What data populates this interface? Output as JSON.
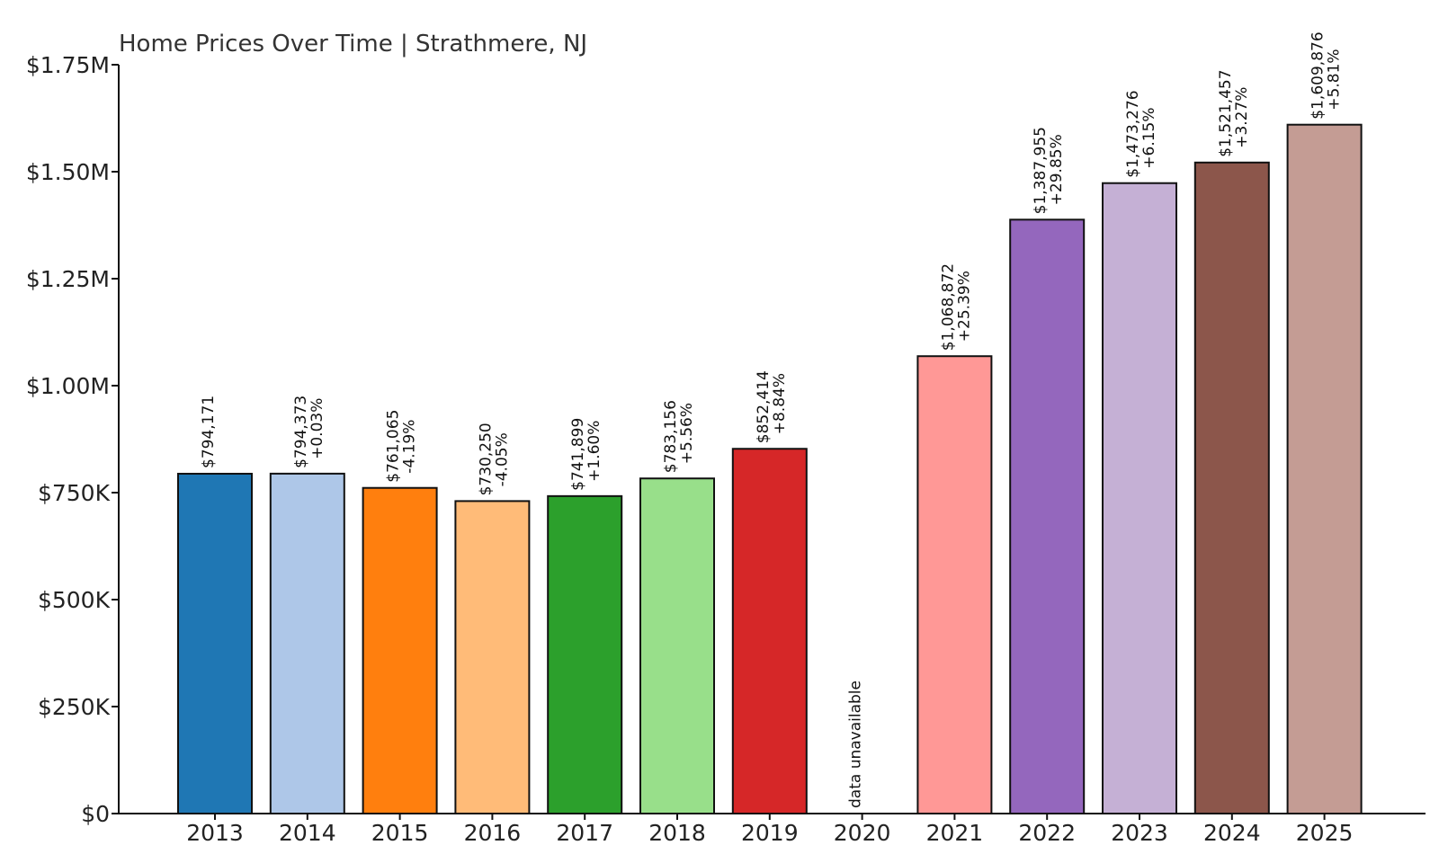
{
  "chart_data": {
    "type": "bar",
    "title": "Home Prices Over Time | Strathmere, NJ",
    "xlabel": "",
    "ylabel": "",
    "ylim": [
      0,
      1750000
    ],
    "grid": false,
    "legend": "none",
    "yticks": [
      {
        "value": 0,
        "label": "$0"
      },
      {
        "value": 250000,
        "label": "$250K"
      },
      {
        "value": 500000,
        "label": "$500K"
      },
      {
        "value": 750000,
        "label": "$750K"
      },
      {
        "value": 1000000,
        "label": "$1.00M"
      },
      {
        "value": 1250000,
        "label": "$1.25M"
      },
      {
        "value": 1500000,
        "label": "$1.50M"
      },
      {
        "value": 1750000,
        "label": "$1.75M"
      }
    ],
    "categories": [
      "2013",
      "2014",
      "2015",
      "2016",
      "2017",
      "2018",
      "2019",
      "2020",
      "2021",
      "2022",
      "2023",
      "2024",
      "2025"
    ],
    "values": [
      794171,
      794373,
      761065,
      730250,
      741899,
      783156,
      852414,
      null,
      1068872,
      1387955,
      1473276,
      1521457,
      1609876
    ],
    "value_labels": [
      "$794,171",
      "$794,373",
      "$761,065",
      "$730,250",
      "$741,899",
      "$783,156",
      "$852,414",
      "data unavailable",
      "$1,068,872",
      "$1,387,955",
      "$1,473,276",
      "$1,521,457",
      "$1,609,876"
    ],
    "change_labels": [
      "",
      "+0.03%",
      "-4.19%",
      "-4.05%",
      "+1.60%",
      "+5.56%",
      "+8.84%",
      "",
      "+25.39%",
      "+29.85%",
      "+6.15%",
      "+3.27%",
      "+5.81%"
    ],
    "colors": [
      "#1f77b4",
      "#aec7e8",
      "#ff7f0e",
      "#ffbb78",
      "#2ca02c",
      "#98df8a",
      "#d62728",
      "#ff9896",
      "#ff9896",
      "#9467bd",
      "#c5b0d5",
      "#8c564b",
      "#c49c94"
    ]
  }
}
